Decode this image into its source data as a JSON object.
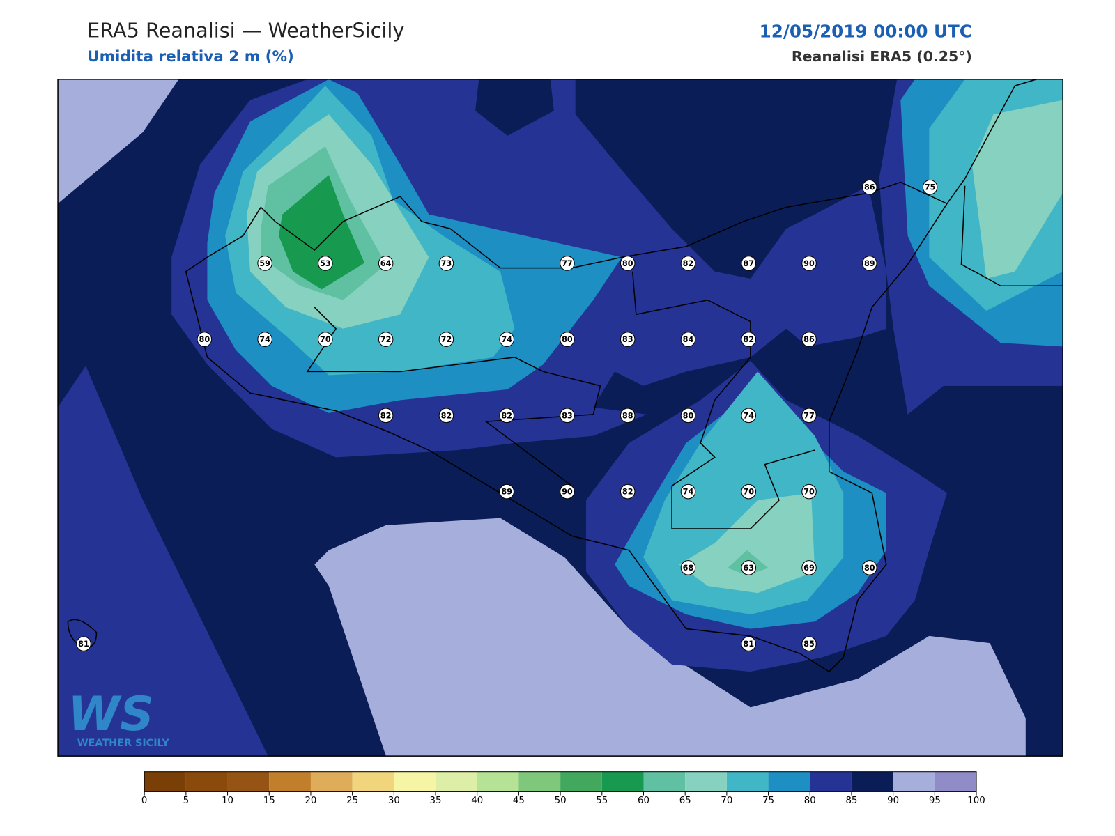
{
  "header": {
    "title": "ERA5 Reanalisi — WeatherSicily",
    "subtitle": "Umidita relativa 2 m (%)",
    "datetime": "12/05/2019 00:00 UTC",
    "source": "Reanalisi ERA5 (0.25°)"
  },
  "stations": [
    86,
    75,
    59,
    53,
    64,
    73,
    77,
    80,
    82,
    87,
    90,
    89,
    80,
    74,
    70,
    72,
    72,
    74,
    80,
    83,
    84,
    82,
    86,
    82,
    82,
    82,
    83,
    88,
    80,
    74,
    77,
    89,
    90,
    82,
    74,
    70,
    70,
    68,
    63,
    69,
    80,
    81,
    85,
    81
  ],
  "colorbar": {
    "ticks": [
      0,
      5,
      10,
      15,
      20,
      25,
      30,
      35,
      40,
      45,
      50,
      55,
      60,
      65,
      70,
      75,
      80,
      85,
      90,
      95,
      100
    ],
    "colors": [
      "#7a3f06",
      "#8a4a0c",
      "#955413",
      "#c17f2b",
      "#dfad5a",
      "#f0d57d",
      "#f6f5a6",
      "#ddefa6",
      "#b6e295",
      "#7fc77b",
      "#42a85e",
      "#179a50",
      "#5fc0a2",
      "#87d1c0",
      "#41b6c6",
      "#1d8fc2",
      "#253494",
      "#0b1d56",
      "#a6aedc",
      "#8f8cc8"
    ]
  },
  "logo": {
    "mark": "WS",
    "text": "WEATHER SICILY"
  }
}
